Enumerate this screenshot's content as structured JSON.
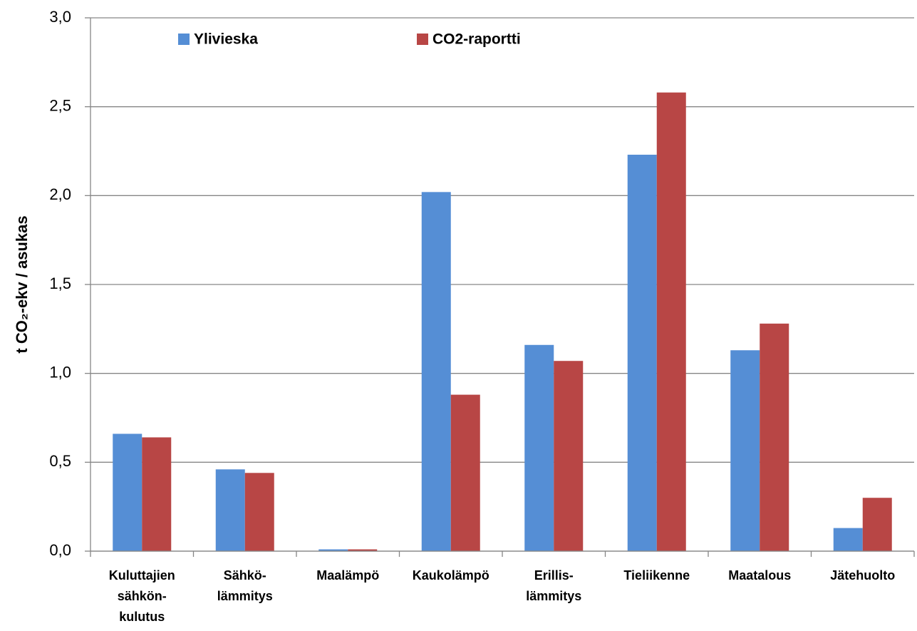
{
  "chart_data": {
    "type": "bar",
    "y_label": "t CO₂-ekv / asukas",
    "categories": [
      [
        "Kuluttajien",
        "sähkön-",
        "kulutus"
      ],
      [
        "Sähkö-",
        "lämmitys"
      ],
      [
        "Maalämpö"
      ],
      [
        "Kaukolämpö"
      ],
      [
        "Erillis-",
        "lämmitys"
      ],
      [
        "Tieliikenne"
      ],
      [
        "Maatalous"
      ],
      [
        "Jätehuolto"
      ]
    ],
    "series": [
      {
        "name": "Ylivieska",
        "color": "#558ed5",
        "values": [
          0.66,
          0.46,
          0.01,
          2.02,
          1.16,
          2.23,
          1.13,
          0.13
        ]
      },
      {
        "name": "CO2-raportti",
        "color": "#b84645",
        "values": [
          0.64,
          0.44,
          0.01,
          0.88,
          1.07,
          2.58,
          1.28,
          0.3
        ]
      }
    ],
    "ylim": [
      0,
      3
    ],
    "yticks": [
      {
        "value": 0,
        "label": "0,0"
      },
      {
        "value": 0.5,
        "label": "0,5"
      },
      {
        "value": 1,
        "label": "1,0"
      },
      {
        "value": 1.5,
        "label": "1,5"
      },
      {
        "value": 2,
        "label": "2,0"
      },
      {
        "value": 2.5,
        "label": "2,5"
      },
      {
        "value": 3,
        "label": "3,0"
      }
    ],
    "grid": true
  }
}
